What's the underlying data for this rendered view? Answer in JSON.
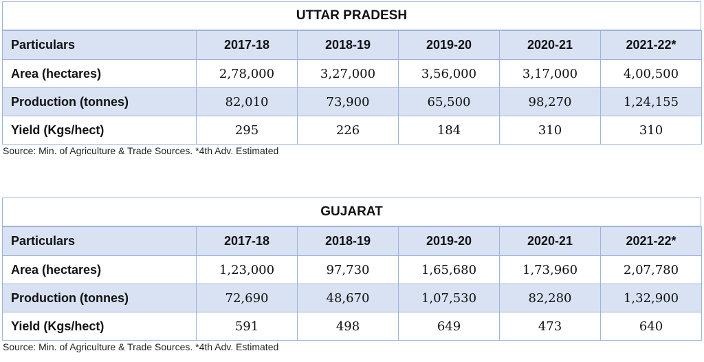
{
  "tables": [
    {
      "title": "UTTAR PRADESH",
      "header": [
        "Particulars",
        "2017-18",
        "2018-19",
        "2019-20",
        "2020-21",
        "2021-22*"
      ],
      "rows": [
        {
          "label": "Area (hectares)",
          "values": [
            "2,78,000",
            "3,27,000",
            "3,56,000",
            "3,17,000",
            "4,00,500"
          ]
        },
        {
          "label": "Production (tonnes)",
          "values": [
            "82,010",
            "73,900",
            "65,500",
            "98,270",
            "1,24,155"
          ]
        },
        {
          "label": "Yield (Kgs/hect)",
          "values": [
            "295",
            "226",
            "184",
            "310",
            "310"
          ]
        }
      ],
      "source": "Source: Min. of Agriculture & Trade Sources. *4th Adv. Estimated"
    },
    {
      "title": "GUJARAT",
      "header": [
        "Particulars",
        "2017-18",
        "2018-19",
        "2019-20",
        "2020-21",
        "2021-22*"
      ],
      "rows": [
        {
          "label": "Area (hectares)",
          "values": [
            "1,23,000",
            "97,730",
            "1,65,680",
            "1,73,960",
            "2,07,780"
          ]
        },
        {
          "label": "Production (tonnes)",
          "values": [
            "72,690",
            "48,670",
            "1,07,530",
            "82,280",
            "1,32,900"
          ]
        },
        {
          "label": "Yield (Kgs/hect)",
          "values": [
            "591",
            "498",
            "649",
            "473",
            "640"
          ]
        }
      ],
      "source": "Source: Min. of Agriculture & Trade Sources. *4th Adv. Estimated"
    }
  ],
  "colors": {
    "header_bg": "#d9e2f3",
    "border": "#9db4da",
    "shaded_row_bg": "#d9e2f3"
  }
}
